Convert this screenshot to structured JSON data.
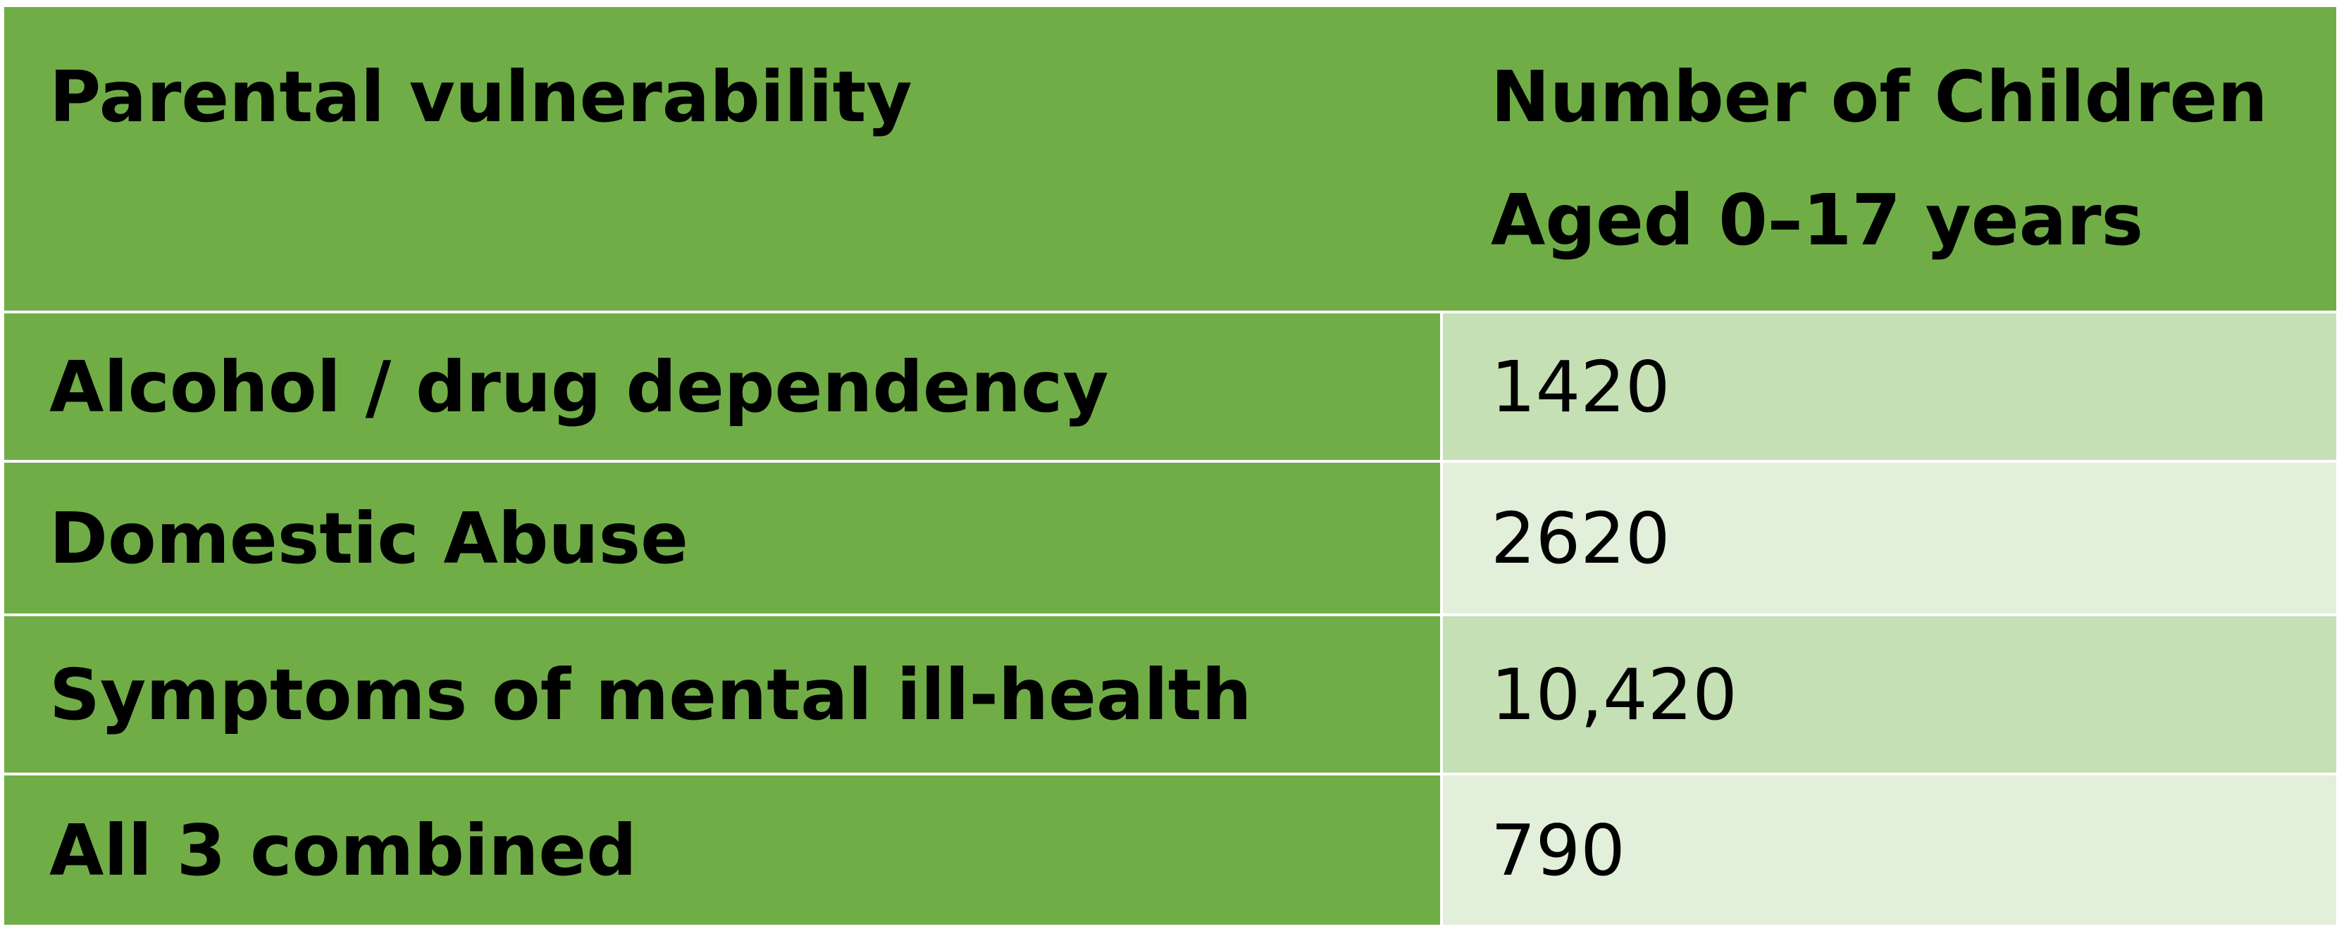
{
  "table": {
    "header": {
      "col1": "Parental vulnerability",
      "col2_line1": "Number of Children",
      "col2_line2": "Aged 0–17 years"
    },
    "rows": [
      {
        "label": "Alcohol / drug dependency",
        "value": "1420"
      },
      {
        "label": "Domestic Abuse",
        "value": "2620"
      },
      {
        "label": "Symptoms of mental ill-health",
        "value": "10,420"
      },
      {
        "label": "All 3 combined",
        "value": "790"
      }
    ]
  },
  "colors": {
    "header_green": "#70ad47",
    "row_light_a": "#c5e0b4",
    "row_light_b": "#e2efda"
  }
}
